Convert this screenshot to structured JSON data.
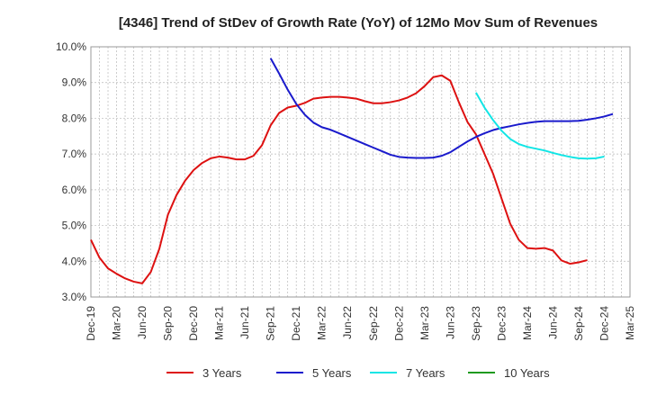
{
  "chart_data": {
    "type": "line",
    "title": "[4346]  Trend of StDev of Growth Rate (YoY) of 12Mo Mov Sum of Revenues",
    "xlabel": "",
    "ylabel": "",
    "ylim": [
      3.0,
      10.0
    ],
    "yticks": [
      3.0,
      4.0,
      5.0,
      6.0,
      7.0,
      8.0,
      9.0,
      10.0
    ],
    "ytick_labels": [
      "3.0%",
      "4.0%",
      "5.0%",
      "6.0%",
      "7.0%",
      "8.0%",
      "9.0%",
      "10.0%"
    ],
    "x_start": "Dec-19",
    "x_months": 63,
    "xtick_labels": [
      "Dec-19",
      "Mar-20",
      "Jun-20",
      "Sep-20",
      "Dec-20",
      "Mar-21",
      "Jun-21",
      "Sep-21",
      "Dec-21",
      "Mar-22",
      "Jun-22",
      "Sep-22",
      "Dec-22",
      "Mar-23",
      "Jun-23",
      "Sep-23",
      "Dec-23",
      "Mar-24",
      "Jun-24",
      "Sep-24",
      "Dec-24",
      "Mar-25"
    ],
    "grid": true,
    "legend_position": "bottom",
    "series": [
      {
        "name": "3 Years",
        "color": "#dd1111",
        "start_index": 0,
        "values": [
          4.6,
          4.1,
          3.8,
          3.65,
          3.52,
          3.43,
          3.38,
          3.7,
          4.35,
          5.3,
          5.85,
          6.25,
          6.55,
          6.75,
          6.88,
          6.93,
          6.9,
          6.85,
          6.85,
          6.95,
          7.25,
          7.8,
          8.15,
          8.3,
          8.35,
          8.43,
          8.55,
          8.58,
          8.6,
          8.6,
          8.58,
          8.55,
          8.48,
          8.42,
          8.42,
          8.45,
          8.5,
          8.58,
          8.7,
          8.9,
          9.15,
          9.2,
          9.05,
          8.45,
          7.9,
          7.55,
          7.0,
          6.45,
          5.75,
          5.05,
          4.6,
          4.37,
          4.35,
          4.37,
          4.3,
          4.02,
          3.93,
          3.97,
          4.03
        ]
      },
      {
        "name": "5 Years",
        "color": "#1a1acc",
        "start_index": 21,
        "values": [
          9.68,
          9.25,
          8.8,
          8.4,
          8.1,
          7.88,
          7.75,
          7.68,
          7.58,
          7.48,
          7.38,
          7.28,
          7.18,
          7.08,
          6.98,
          6.92,
          6.9,
          6.89,
          6.89,
          6.9,
          6.95,
          7.05,
          7.2,
          7.35,
          7.48,
          7.58,
          7.67,
          7.73,
          7.78,
          7.83,
          7.87,
          7.9,
          7.92,
          7.92,
          7.92,
          7.92,
          7.93,
          7.96,
          8.0,
          8.05,
          8.12
        ]
      },
      {
        "name": "7 Years",
        "color": "#11e5e5",
        "start_index": 45,
        "values": [
          8.72,
          8.3,
          7.95,
          7.65,
          7.42,
          7.28,
          7.2,
          7.15,
          7.1,
          7.03,
          6.97,
          6.92,
          6.88,
          6.87,
          6.88,
          6.93
        ]
      },
      {
        "name": "10 Years",
        "color": "#1f9a1f",
        "start_index": 0,
        "values": []
      }
    ]
  }
}
